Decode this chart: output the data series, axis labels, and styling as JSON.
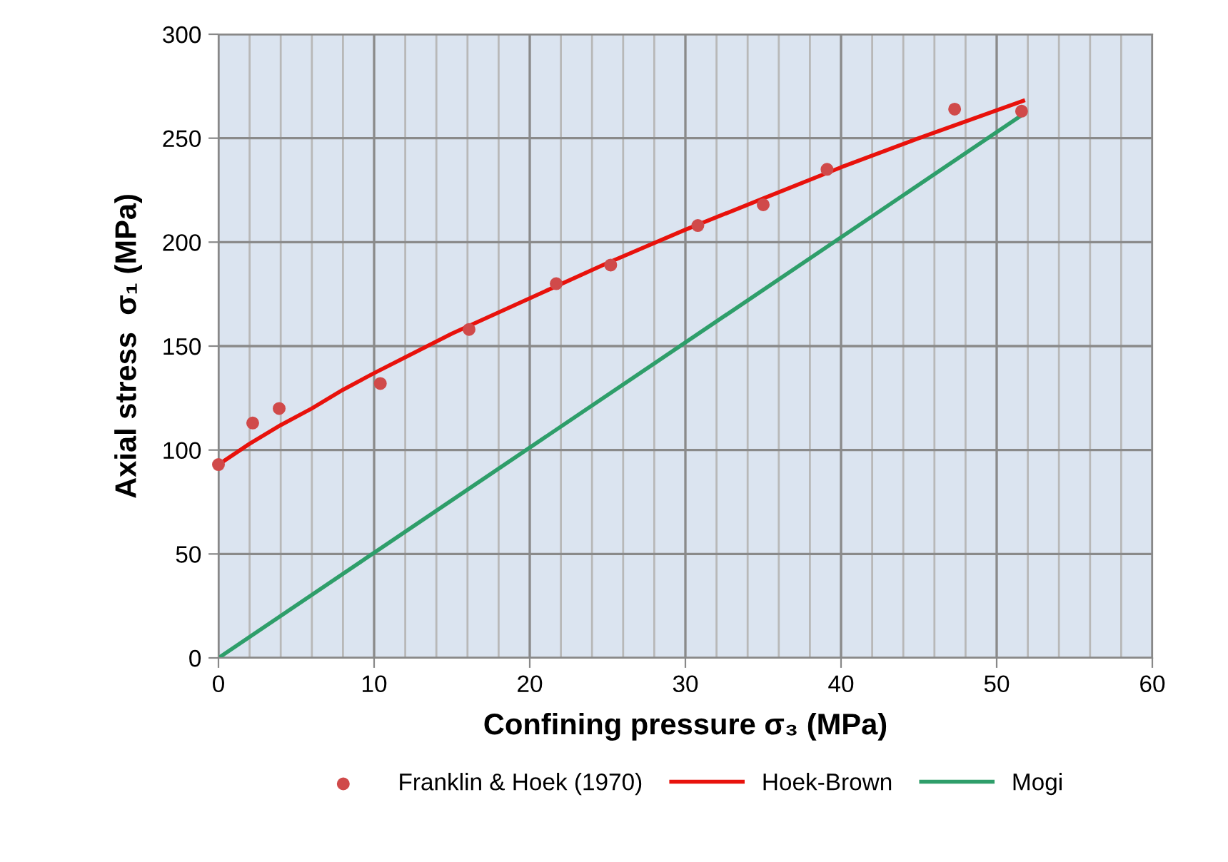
{
  "chart_data": {
    "type": "line",
    "xlabel": "Confining pressure σ₃ (MPa)",
    "ylabel": "Axial stress  σ₁ (MPa)",
    "xlim": [
      0,
      60
    ],
    "ylim": [
      0,
      300
    ],
    "xticks": [
      0,
      {
        "value": 2,
        "label": null
      },
      {
        "value": 4,
        "label": null
      },
      {
        "value": 6,
        "label": null
      },
      {
        "value": 8,
        "label": null
      },
      10,
      {
        "value": 12,
        "label": null
      },
      {
        "value": 14,
        "label": null
      },
      {
        "value": 16,
        "label": null
      },
      {
        "value": 18,
        "label": null
      },
      20,
      {
        "value": 22,
        "label": null
      },
      {
        "value": 24,
        "label": null
      },
      {
        "value": 26,
        "label": null
      },
      {
        "value": 28,
        "label": null
      },
      30,
      {
        "value": 32,
        "label": null
      },
      {
        "value": 34,
        "label": null
      },
      {
        "value": 36,
        "label": null
      },
      {
        "value": 38,
        "label": null
      },
      40,
      {
        "value": 42,
        "label": null
      },
      {
        "value": 44,
        "label": null
      },
      {
        "value": 46,
        "label": null
      },
      {
        "value": 48,
        "label": null
      },
      50,
      {
        "value": 52,
        "label": null
      },
      {
        "value": 54,
        "label": null
      },
      {
        "value": 56,
        "label": null
      },
      {
        "value": 58,
        "label": null
      },
      60
    ],
    "yticks": [
      0,
      50,
      100,
      150,
      200,
      250,
      300
    ],
    "grid": true,
    "legend": "bottom",
    "series": [
      {
        "name": "Franklin & Hoek (1970)",
        "type": "scatter",
        "marker": "circle",
        "color": "#d04a4a",
        "x": [
          0,
          2.2,
          3.9,
          10.4,
          16.1,
          21.7,
          25.2,
          30.8,
          35.0,
          39.1,
          47.3,
          51.6
        ],
        "values": [
          93,
          113,
          120,
          132,
          158,
          180,
          189,
          208,
          218,
          235,
          264,
          263
        ]
      },
      {
        "name": "Hoek-Brown",
        "color": "#e8120c",
        "x": [
          0,
          2,
          4,
          6,
          8,
          10,
          15,
          20,
          25,
          30,
          35,
          40,
          45,
          51.7
        ],
        "values": [
          93,
          103,
          112,
          120,
          129,
          137,
          156,
          173,
          190,
          206,
          221,
          236,
          250,
          268
        ]
      },
      {
        "name": "Mogi",
        "color": "#2e9e6a",
        "x": [
          0,
          51.6
        ],
        "values": [
          0,
          261
        ]
      }
    ]
  }
}
